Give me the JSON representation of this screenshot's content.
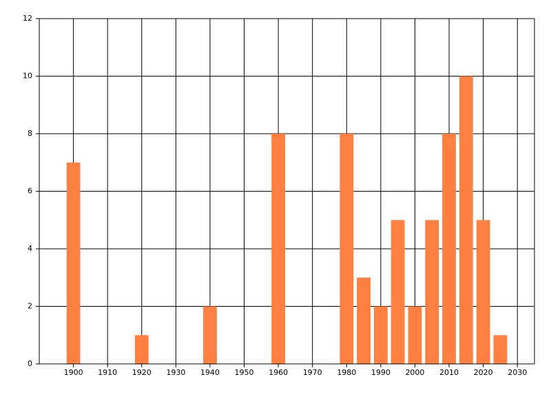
{
  "chart_data": {
    "type": "bar",
    "x": [
      1900,
      1920,
      1940,
      1960,
      1980,
      1985,
      1990,
      1995,
      2000,
      2005,
      2010,
      2015,
      2020,
      2025
    ],
    "values": [
      7,
      1,
      2,
      8,
      8,
      3,
      2,
      5,
      2,
      5,
      8,
      10,
      5,
      1
    ],
    "color": "#ff8040",
    "xlim": [
      1890,
      2035
    ],
    "xticks": [
      1900,
      1910,
      1920,
      1930,
      1940,
      1950,
      1960,
      1970,
      1980,
      1990,
      2000,
      2010,
      2020,
      2030
    ],
    "ylim": [
      0,
      12
    ],
    "yticks": [
      0,
      2,
      4,
      6,
      8,
      10,
      12
    ],
    "grid": true
  }
}
